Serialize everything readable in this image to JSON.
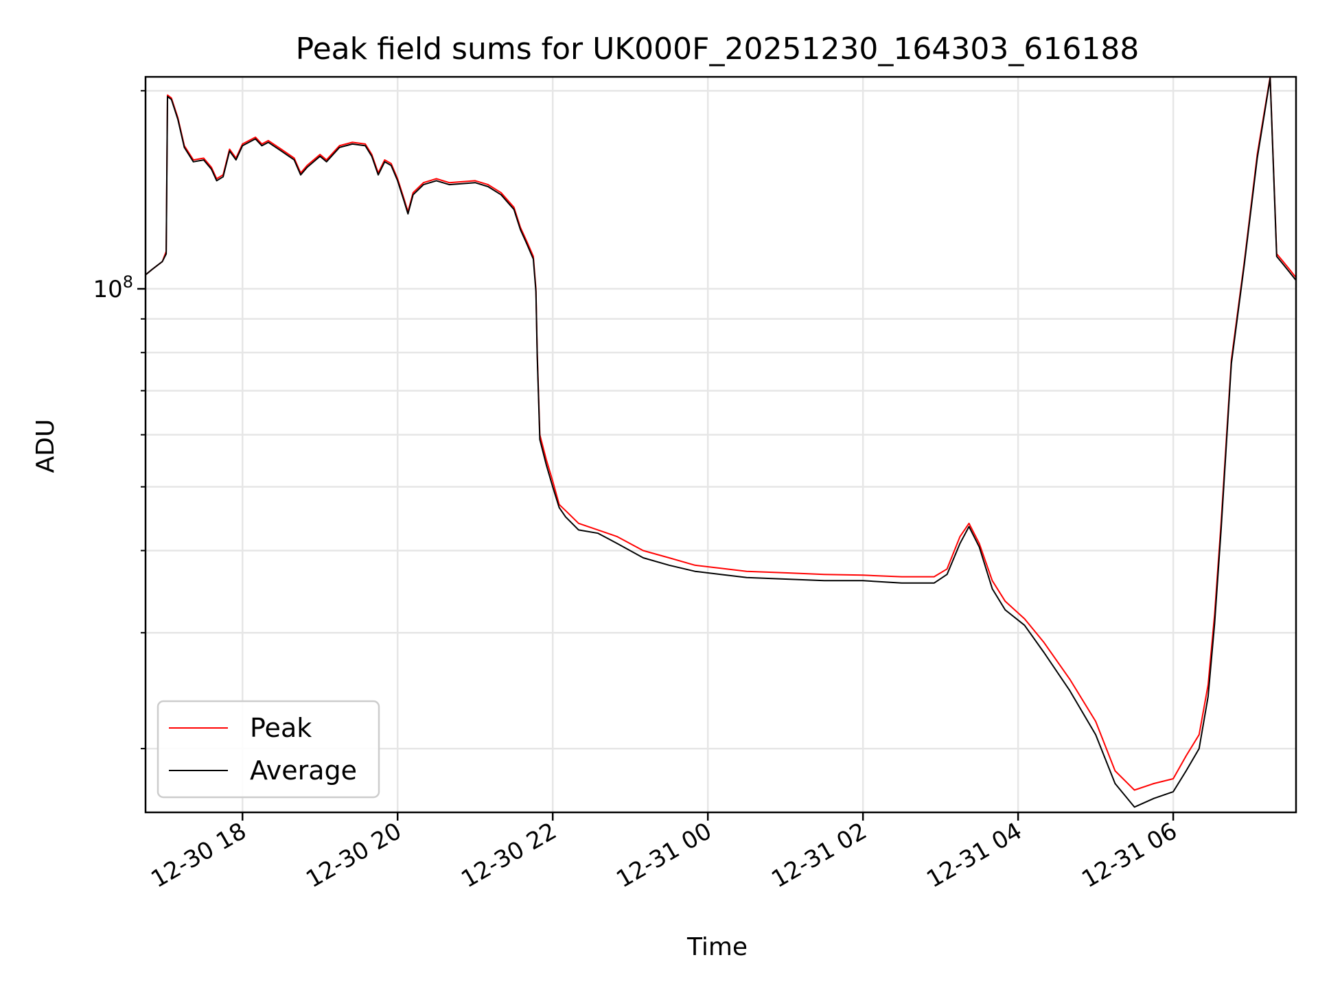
{
  "chart_data": {
    "type": "line",
    "title": "Peak field sums for UK000F_20251230_164303_616188",
    "xlabel": "Time",
    "ylabel": "ADU",
    "x_scale": "time",
    "y_scale": "log",
    "grid": true,
    "legend_position": "lower-left",
    "xlim": [
      "2025-12-30T16:45",
      "2025-12-31T07:35"
    ],
    "ylim": [
      16000000,
      210000000
    ],
    "x_ticks": [
      "2025-12-30T18:00",
      "2025-12-30T20:00",
      "2025-12-30T22:00",
      "2025-12-31T00:00",
      "2025-12-31T02:00",
      "2025-12-31T04:00",
      "2025-12-31T06:00"
    ],
    "x_tick_labels": [
      "12-30 18",
      "12-30 20",
      "12-30 22",
      "12-31 00",
      "12-31 02",
      "12-31 04",
      "12-31 06"
    ],
    "y_major_ticks": [
      100000000
    ],
    "y_major_tick_labels": [
      "10"
    ],
    "y_major_tick_exponents": [
      "8"
    ],
    "y_minor_ticks": [
      20000000,
      30000000,
      40000000,
      50000000,
      60000000,
      70000000,
      80000000,
      90000000,
      200000000
    ],
    "series": [
      {
        "name": "Peak",
        "color": "#ff0000",
        "points": [
          [
            "2025-12-30T16:45",
            105000000
          ],
          [
            "2025-12-30T16:50",
            107000000
          ],
          [
            "2025-12-30T16:58",
            110000000
          ],
          [
            "2025-12-30T17:01",
            114000000
          ],
          [
            "2025-12-30T17:02",
            197000000
          ],
          [
            "2025-12-30T17:05",
            195000000
          ],
          [
            "2025-12-30T17:10",
            182000000
          ],
          [
            "2025-12-30T17:15",
            165000000
          ],
          [
            "2025-12-30T17:22",
            157000000
          ],
          [
            "2025-12-30T17:30",
            158000000
          ],
          [
            "2025-12-30T17:36",
            153000000
          ],
          [
            "2025-12-30T17:40",
            147000000
          ],
          [
            "2025-12-30T17:45",
            149000000
          ],
          [
            "2025-12-30T17:50",
            163000000
          ],
          [
            "2025-12-30T17:55",
            158000000
          ],
          [
            "2025-12-30T18:00",
            166000000
          ],
          [
            "2025-12-30T18:10",
            170000000
          ],
          [
            "2025-12-30T18:15",
            166000000
          ],
          [
            "2025-12-30T18:20",
            168000000
          ],
          [
            "2025-12-30T18:30",
            163000000
          ],
          [
            "2025-12-30T18:40",
            158000000
          ],
          [
            "2025-12-30T18:45",
            150000000
          ],
          [
            "2025-12-30T18:50",
            154000000
          ],
          [
            "2025-12-30T19:00",
            160000000
          ],
          [
            "2025-12-30T19:05",
            157000000
          ],
          [
            "2025-12-30T19:15",
            165000000
          ],
          [
            "2025-12-30T19:25",
            167000000
          ],
          [
            "2025-12-30T19:35",
            166000000
          ],
          [
            "2025-12-30T19:40",
            160000000
          ],
          [
            "2025-12-30T19:45",
            150000000
          ],
          [
            "2025-12-30T19:50",
            157000000
          ],
          [
            "2025-12-30T19:55",
            155000000
          ],
          [
            "2025-12-30T20:00",
            147000000
          ],
          [
            "2025-12-30T20:05",
            137000000
          ],
          [
            "2025-12-30T20:08",
            131000000
          ],
          [
            "2025-12-30T20:12",
            140000000
          ],
          [
            "2025-12-30T20:20",
            145000000
          ],
          [
            "2025-12-30T20:30",
            147000000
          ],
          [
            "2025-12-30T20:40",
            145000000
          ],
          [
            "2025-12-30T21:00",
            146000000
          ],
          [
            "2025-12-30T21:10",
            144000000
          ],
          [
            "2025-12-30T21:20",
            140000000
          ],
          [
            "2025-12-30T21:30",
            133000000
          ],
          [
            "2025-12-30T21:35",
            124000000
          ],
          [
            "2025-12-30T21:40",
            118000000
          ],
          [
            "2025-12-30T21:45",
            112000000
          ],
          [
            "2025-12-30T21:47",
            100000000
          ],
          [
            "2025-12-30T21:48",
            80000000
          ],
          [
            "2025-12-30T21:50",
            60000000
          ],
          [
            "2025-12-30T21:55",
            55000000
          ],
          [
            "2025-12-30T22:00",
            51000000
          ],
          [
            "2025-12-30T22:05",
            47000000
          ],
          [
            "2025-12-30T22:10",
            46000000
          ],
          [
            "2025-12-30T22:20",
            44000000
          ],
          [
            "2025-12-30T22:35",
            43000000
          ],
          [
            "2025-12-30T22:50",
            42000000
          ],
          [
            "2025-12-30T23:10",
            40000000
          ],
          [
            "2025-12-30T23:30",
            39000000
          ],
          [
            "2025-12-30T23:50",
            38000000
          ],
          [
            "2025-12-31T00:10",
            37600000
          ],
          [
            "2025-12-31T00:30",
            37200000
          ],
          [
            "2025-12-31T01:00",
            37000000
          ],
          [
            "2025-12-31T01:30",
            36800000
          ],
          [
            "2025-12-31T02:00",
            36700000
          ],
          [
            "2025-12-31T02:30",
            36500000
          ],
          [
            "2025-12-31T02:55",
            36500000
          ],
          [
            "2025-12-31T03:05",
            37500000
          ],
          [
            "2025-12-31T03:15",
            42000000
          ],
          [
            "2025-12-31T03:22",
            44000000
          ],
          [
            "2025-12-31T03:30",
            41000000
          ],
          [
            "2025-12-31T03:40",
            36000000
          ],
          [
            "2025-12-31T03:50",
            33500000
          ],
          [
            "2025-12-31T04:05",
            31500000
          ],
          [
            "2025-12-31T04:20",
            29000000
          ],
          [
            "2025-12-31T04:40",
            25500000
          ],
          [
            "2025-12-31T05:00",
            22000000
          ],
          [
            "2025-12-31T05:15",
            18500000
          ],
          [
            "2025-12-31T05:30",
            17300000
          ],
          [
            "2025-12-31T05:45",
            17700000
          ],
          [
            "2025-12-31T06:00",
            18000000
          ],
          [
            "2025-12-31T06:10",
            19500000
          ],
          [
            "2025-12-31T06:20",
            21000000
          ],
          [
            "2025-12-31T06:27",
            25000000
          ],
          [
            "2025-12-31T06:32",
            32000000
          ],
          [
            "2025-12-31T06:37",
            44000000
          ],
          [
            "2025-12-31T06:45",
            78000000
          ],
          [
            "2025-12-31T06:55",
            110000000
          ],
          [
            "2025-12-31T07:05",
            160000000
          ],
          [
            "2025-12-31T07:15",
            210000000
          ],
          [
            "2025-12-31T07:20",
            113000000
          ],
          [
            "2025-12-31T07:25",
            110000000
          ],
          [
            "2025-12-31T07:30",
            107000000
          ],
          [
            "2025-12-31T07:35",
            104000000
          ]
        ]
      },
      {
        "name": "Average",
        "color": "#000000",
        "points": [
          [
            "2025-12-30T16:45",
            105000000
          ],
          [
            "2025-12-30T16:50",
            107000000
          ],
          [
            "2025-12-30T16:58",
            110000000
          ],
          [
            "2025-12-30T17:01",
            113000000
          ],
          [
            "2025-12-30T17:02",
            196000000
          ],
          [
            "2025-12-30T17:05",
            194000000
          ],
          [
            "2025-12-30T17:10",
            181000000
          ],
          [
            "2025-12-30T17:15",
            164000000
          ],
          [
            "2025-12-30T17:22",
            156000000
          ],
          [
            "2025-12-30T17:30",
            157000000
          ],
          [
            "2025-12-30T17:36",
            152000000
          ],
          [
            "2025-12-30T17:40",
            146000000
          ],
          [
            "2025-12-30T17:45",
            148000000
          ],
          [
            "2025-12-30T17:50",
            162000000
          ],
          [
            "2025-12-30T17:55",
            157000000
          ],
          [
            "2025-12-30T18:00",
            165000000
          ],
          [
            "2025-12-30T18:10",
            169000000
          ],
          [
            "2025-12-30T18:15",
            165000000
          ],
          [
            "2025-12-30T18:20",
            167000000
          ],
          [
            "2025-12-30T18:30",
            162000000
          ],
          [
            "2025-12-30T18:40",
            157000000
          ],
          [
            "2025-12-30T18:45",
            149000000
          ],
          [
            "2025-12-30T18:50",
            153000000
          ],
          [
            "2025-12-30T19:00",
            159000000
          ],
          [
            "2025-12-30T19:05",
            156000000
          ],
          [
            "2025-12-30T19:15",
            164000000
          ],
          [
            "2025-12-30T19:25",
            166000000
          ],
          [
            "2025-12-30T19:35",
            165000000
          ],
          [
            "2025-12-30T19:40",
            159000000
          ],
          [
            "2025-12-30T19:45",
            149000000
          ],
          [
            "2025-12-30T19:50",
            156000000
          ],
          [
            "2025-12-30T19:55",
            154000000
          ],
          [
            "2025-12-30T20:00",
            146000000
          ],
          [
            "2025-12-30T20:05",
            136000000
          ],
          [
            "2025-12-30T20:08",
            130000000
          ],
          [
            "2025-12-30T20:12",
            139000000
          ],
          [
            "2025-12-30T20:20",
            144000000
          ],
          [
            "2025-12-30T20:30",
            146000000
          ],
          [
            "2025-12-30T20:40",
            144000000
          ],
          [
            "2025-12-30T21:00",
            145000000
          ],
          [
            "2025-12-30T21:10",
            143000000
          ],
          [
            "2025-12-30T21:20",
            139000000
          ],
          [
            "2025-12-30T21:30",
            132000000
          ],
          [
            "2025-12-30T21:35",
            123000000
          ],
          [
            "2025-12-30T21:40",
            117000000
          ],
          [
            "2025-12-30T21:45",
            111000000
          ],
          [
            "2025-12-30T21:47",
            99000000
          ],
          [
            "2025-12-30T21:48",
            79000000
          ],
          [
            "2025-12-30T21:50",
            59000000
          ],
          [
            "2025-12-30T21:55",
            54000000
          ],
          [
            "2025-12-30T22:00",
            50000000
          ],
          [
            "2025-12-30T22:05",
            46500000
          ],
          [
            "2025-12-30T22:10",
            45000000
          ],
          [
            "2025-12-30T22:20",
            43000000
          ],
          [
            "2025-12-30T22:35",
            42500000
          ],
          [
            "2025-12-30T22:50",
            41000000
          ],
          [
            "2025-12-30T23:10",
            39000000
          ],
          [
            "2025-12-30T23:30",
            38000000
          ],
          [
            "2025-12-30T23:50",
            37200000
          ],
          [
            "2025-12-31T00:10",
            36800000
          ],
          [
            "2025-12-31T00:30",
            36400000
          ],
          [
            "2025-12-31T01:00",
            36200000
          ],
          [
            "2025-12-31T01:30",
            36000000
          ],
          [
            "2025-12-31T02:00",
            36000000
          ],
          [
            "2025-12-31T02:30",
            35700000
          ],
          [
            "2025-12-31T02:55",
            35700000
          ],
          [
            "2025-12-31T03:05",
            36800000
          ],
          [
            "2025-12-31T03:15",
            41000000
          ],
          [
            "2025-12-31T03:22",
            43500000
          ],
          [
            "2025-12-31T03:30",
            40500000
          ],
          [
            "2025-12-31T03:40",
            35000000
          ],
          [
            "2025-12-31T03:50",
            32500000
          ],
          [
            "2025-12-31T04:05",
            30800000
          ],
          [
            "2025-12-31T04:20",
            28000000
          ],
          [
            "2025-12-31T04:40",
            24500000
          ],
          [
            "2025-12-31T05:00",
            21000000
          ],
          [
            "2025-12-31T05:15",
            17700000
          ],
          [
            "2025-12-31T05:30",
            16300000
          ],
          [
            "2025-12-31T05:45",
            16800000
          ],
          [
            "2025-12-31T06:00",
            17200000
          ],
          [
            "2025-12-31T06:10",
            18500000
          ],
          [
            "2025-12-31T06:20",
            20000000
          ],
          [
            "2025-12-31T06:27",
            24000000
          ],
          [
            "2025-12-31T06:32",
            31000000
          ],
          [
            "2025-12-31T06:37",
            43000000
          ],
          [
            "2025-12-31T06:45",
            77000000
          ],
          [
            "2025-12-31T06:55",
            109000000
          ],
          [
            "2025-12-31T07:05",
            158000000
          ],
          [
            "2025-12-31T07:15",
            209000000
          ],
          [
            "2025-12-31T07:20",
            112000000
          ],
          [
            "2025-12-31T07:25",
            109000000
          ],
          [
            "2025-12-31T07:30",
            106000000
          ],
          [
            "2025-12-31T07:35",
            103000000
          ]
        ]
      }
    ]
  }
}
